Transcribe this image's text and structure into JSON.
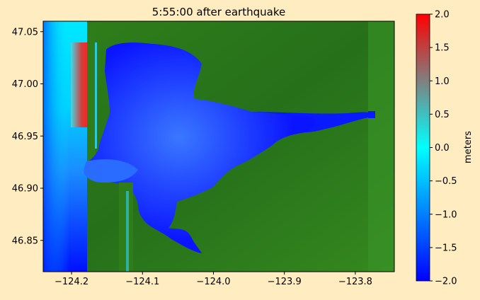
{
  "figure": {
    "title": "5:55:00 after earthquake",
    "background": "#ffecc0"
  },
  "chart_data": {
    "type": "heatmap",
    "title": "5:55:00 after earthquake",
    "xlabel": "",
    "ylabel": "",
    "xlim": [
      -124.24,
      -123.745
    ],
    "ylim": [
      46.82,
      47.06
    ],
    "xticks": [
      -124.2,
      -124.1,
      -124.0,
      -123.9,
      -123.8
    ],
    "xtick_labels": [
      "−124.2",
      "−124.1",
      "−124.0",
      "−123.9",
      "−123.8"
    ],
    "yticks": [
      46.85,
      46.9,
      46.95,
      47.0,
      47.05
    ],
    "ytick_labels": [
      "46.85",
      "46.90",
      "46.95",
      "47.00",
      "47.05"
    ],
    "colorbar": {
      "label": "meters",
      "range": [
        -2.0,
        2.0
      ],
      "ticks": [
        2.0,
        1.5,
        1.0,
        0.5,
        0.0,
        -0.5,
        -1.0,
        -1.5,
        -2.0
      ],
      "tick_labels": [
        "2.0",
        "1.5",
        "1.0",
        "0.5",
        "0.0",
        "−0.5",
        "−1.0",
        "−1.5",
        "−2.0"
      ],
      "colormap": [
        "#0000ff",
        "#00ffff",
        "#808080",
        "#ff0000"
      ]
    },
    "land_color": "#2e7d1a",
    "water_low_color": "#0000ff",
    "water_mid_color": "#00ffff",
    "water_high_color": "#ff0000"
  }
}
